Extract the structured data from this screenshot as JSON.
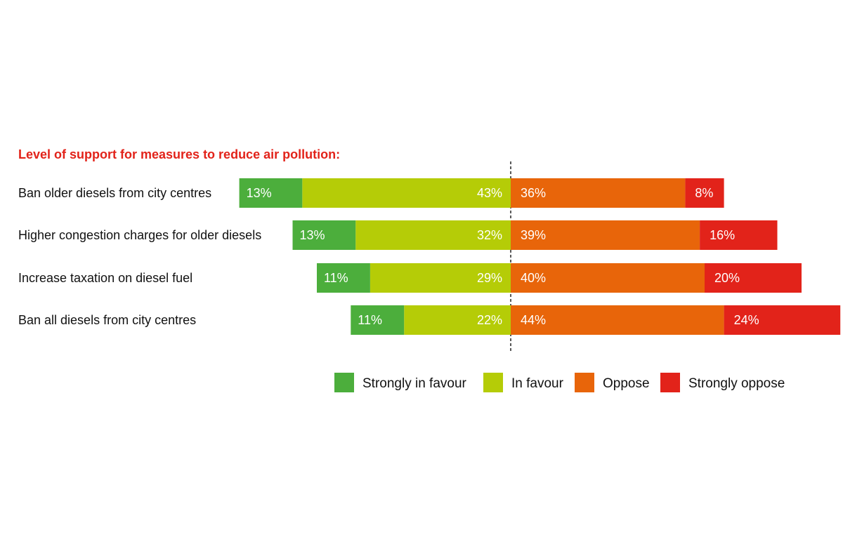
{
  "chart_data": {
    "type": "diverging-bar",
    "title": "Level  of support for measures to reduce air pollution:",
    "categories": [
      "Ban older diesels from city centres",
      "Higher congestion charges for older diesels",
      "Increase taxation on diesel fuel",
      "Ban all diesels from city centres"
    ],
    "series": [
      {
        "name": "Strongly in favour",
        "color": "#4cae3c",
        "side": "left",
        "values": [
          13,
          13,
          11,
          11
        ],
        "value_labels": [
          "13%",
          "13%",
          "11%",
          "11%"
        ]
      },
      {
        "name": "In favour",
        "color": "#b5cc07",
        "side": "left",
        "values": [
          43,
          32,
          29,
          22
        ],
        "value_labels": [
          "43%",
          "32%",
          "29%",
          "22%"
        ]
      },
      {
        "name": "Oppose",
        "color": "#e8650a",
        "side": "right",
        "values": [
          36,
          39,
          40,
          44
        ],
        "value_labels": [
          "36%",
          "39%",
          "40%",
          "44%"
        ]
      },
      {
        "name": "Strongly oppose",
        "color": "#e2231a",
        "side": "right",
        "values": [
          8,
          16,
          20,
          24
        ],
        "value_labels": [
          "8%",
          "16%",
          "20%",
          "24%"
        ]
      }
    ],
    "title_color": "#e2231a"
  }
}
